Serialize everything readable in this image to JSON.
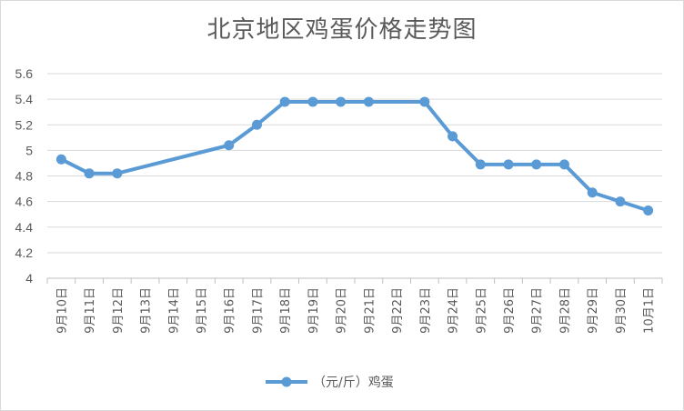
{
  "chart_data": {
    "type": "line",
    "title": "北京地区鸡蛋价格走势图",
    "categories": [
      "9月10日",
      "9月11日",
      "9月12日",
      "9月13日",
      "9月14日",
      "9月15日",
      "9月16日",
      "9月17日",
      "9月18日",
      "9月19日",
      "9月20日",
      "9月21日",
      "9月22日",
      "9月23日",
      "9月24日",
      "9月25日",
      "9月26日",
      "9月27日",
      "9月28日",
      "9月29日",
      "9月30日",
      "10月1日"
    ],
    "series": [
      {
        "name": "（元/斤）鸡蛋",
        "color": "#5b9bd5",
        "values": [
          4.93,
          4.82,
          4.82,
          null,
          null,
          null,
          5.04,
          5.2,
          5.38,
          5.38,
          5.38,
          5.38,
          null,
          5.38,
          5.11,
          4.89,
          4.89,
          4.89,
          4.89,
          4.67,
          4.6,
          4.53
        ]
      }
    ],
    "yticks": [
      "4",
      "4.2",
      "4.4",
      "4.6",
      "4.8",
      "5",
      "5.2",
      "5.4",
      "5.6"
    ],
    "ylim": [
      4,
      5.6
    ],
    "grid": true,
    "legend_position": "bottom",
    "xlabel": "",
    "ylabel": ""
  }
}
